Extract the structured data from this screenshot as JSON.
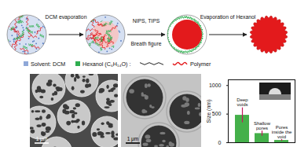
{
  "schematic": {
    "steps": [
      {
        "label": "DCM evaporation"
      },
      {
        "label": "NIPS, TIPS",
        "label_below": "Breath figure"
      },
      {
        "label": "Evaporation of Hexanol"
      }
    ],
    "legend": [
      {
        "label": "Solvent: DCM",
        "color": "#8fa8d8"
      },
      {
        "label": "Hexanol (C₆H₁₄O) :",
        "color": "#2fae4f"
      },
      {
        "label": "Polymer",
        "color": "#e31a1c"
      }
    ]
  },
  "micrographs": [
    {
      "scale_bar": "1 μm"
    },
    {
      "scale_bar": "1 μm"
    }
  ],
  "chart_data": {
    "type": "bar",
    "categories": [
      "Deep voids",
      "Shallow pores",
      "Pores inside the void"
    ],
    "values": [
      480,
      160,
      40
    ],
    "errors": [
      130,
      45,
      15
    ],
    "color": "#44b04a",
    "ylabel": "Size (nm)",
    "ylim": [
      0,
      1100
    ],
    "yticks": [
      0,
      500,
      1000
    ],
    "tick_labels": "y"
  }
}
